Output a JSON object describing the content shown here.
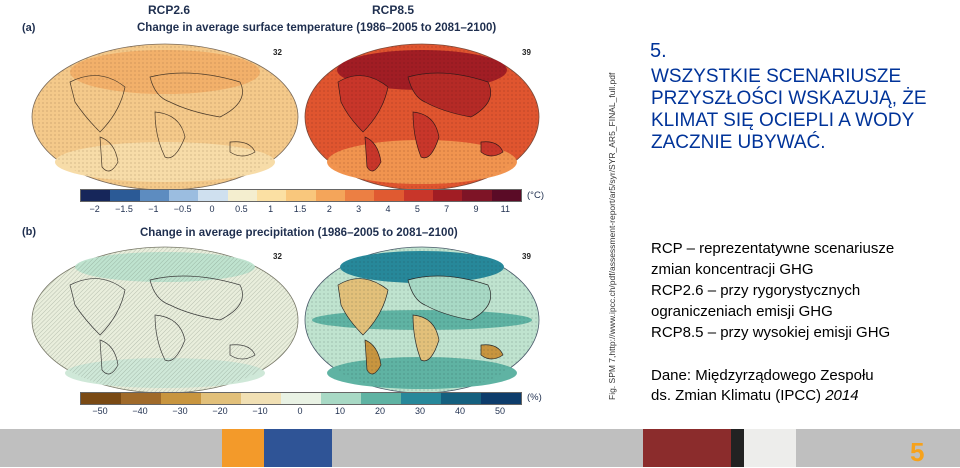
{
  "figure": {
    "panel_a": "(a)",
    "panel_b": "(b)",
    "scenario_left": "RCP2.6",
    "scenario_right": "RCP8.5",
    "title_a": "Change in average surface temperature (1986–2005 to 2081–2100)",
    "title_b": "Change in average precipitation (1986–2005 to 2081–2100)",
    "model_count_left": "32",
    "model_count_right": "39",
    "model_count_left_b": "32",
    "model_count_right_b": "39",
    "temp_ticks": [
      "−2",
      "−1.5",
      "−1",
      "−0.5",
      "0",
      "0.5",
      "1",
      "1.5",
      "2",
      "3",
      "4",
      "5",
      "7",
      "9",
      "11"
    ],
    "temp_unit": "(°C)",
    "precip_ticks": [
      "−50",
      "−40",
      "−30",
      "−20",
      "−10",
      "0",
      "10",
      "20",
      "30",
      "40",
      "50"
    ],
    "precip_unit": "(%)",
    "temp_colors": [
      "#16265a",
      "#2b5a96",
      "#5d8cc0",
      "#9bbde0",
      "#cfe0ef",
      "#f4eecf",
      "#fbe0a3",
      "#f9c77c",
      "#f4a55a",
      "#ec7f43",
      "#e05a31",
      "#c8362a",
      "#a11d24",
      "#7e1426",
      "#5a0b26"
    ],
    "precip_colors": [
      "#7a4a14",
      "#a06a2a",
      "#c8953f",
      "#e2c07a",
      "#f1e0b4",
      "#e9f2e4",
      "#a8d9c5",
      "#5fb3a3",
      "#27889a",
      "#15607f",
      "#0d3c6b"
    ],
    "source_url": "Fig. SPM 7,http://www.ipcc.ch/pdf/assessment-report/ar5/syr/SYR_AR5_FINAL_full.pdf"
  },
  "slide": {
    "number": "5.",
    "heading": "WSZYSTKIE SCENARIUSZE PRZYSZŁOŚCI WSKAZUJĄ, ŻE KLIMAT SIĘ OCIEPLI A WODY ZACZNIE UBYWAĆ.",
    "rcp_def": "RCP – reprezentatywne scenariusze",
    "rcp_def2": "zmian koncentracji GHG",
    "rcp26_a": "RCP2.6 – przy rygorystycznych",
    "rcp26_b": "ograniczeniach emisji GHG",
    "rcp85": "RCP8.5 – przy wysokiej emisji GHG",
    "source_a": "Dane: Międzyrządowego Zespołu",
    "source_b_plain": "ds. Zmian Klimatu (IPCC) ",
    "source_b_year": "2014",
    "page_number": "5"
  },
  "footer": {
    "colors": [
      "#f39a2a",
      "#2f5496",
      "#8b2c2c",
      "#222222",
      "#ededeb"
    ]
  }
}
